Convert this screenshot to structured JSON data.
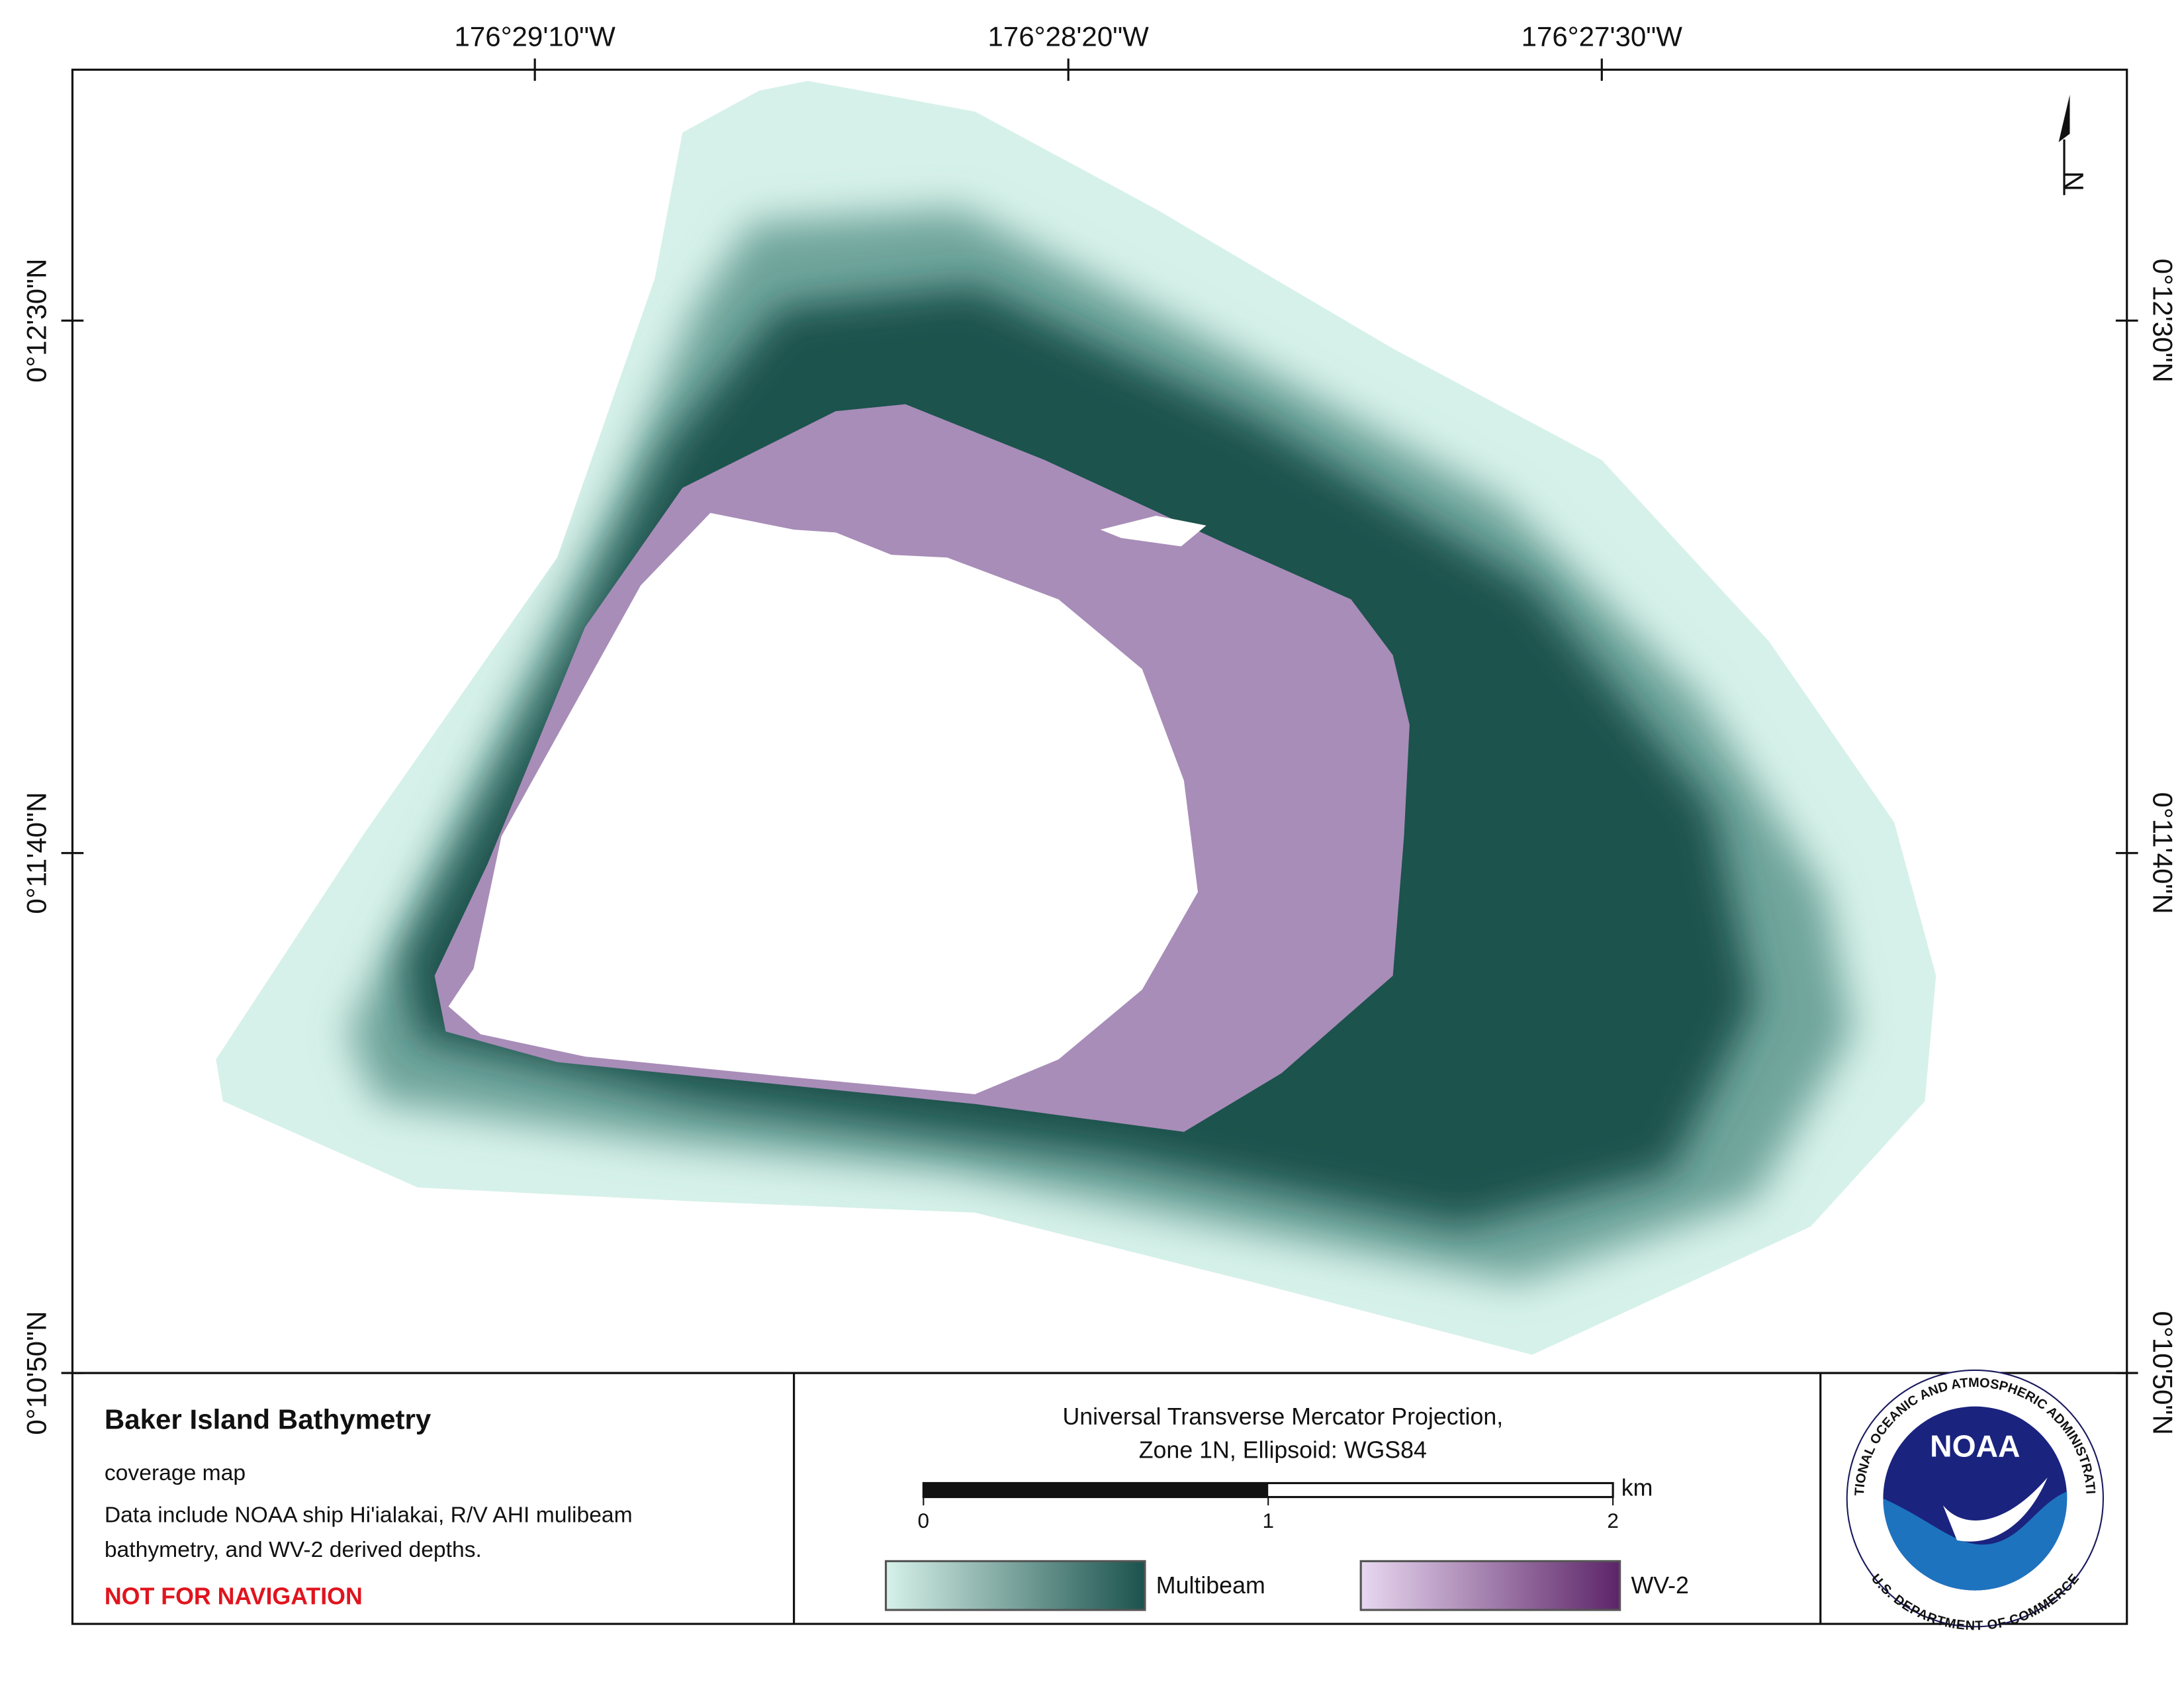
{
  "map": {
    "lon_labels": [
      "176°29'10\"W",
      "176°28'20\"W",
      "176°27'30\"W"
    ],
    "lat_labels": [
      "0°12'30\"N",
      "0°11'40\"N",
      "0°10'50\"N"
    ],
    "north_arrow": "N"
  },
  "info": {
    "title": "Baker Island Bathymetry",
    "subtitle": "coverage map",
    "description": [
      "Data include NOAA ship Hi'ialakai, R/V AHI mulibeam",
      "bathymetry, and WV-2 derived depths."
    ],
    "warning": "NOT FOR NAVIGATION"
  },
  "projection": [
    "Universal Transverse Mercator Projection,",
    "Zone 1N, Ellipsoid: WGS84"
  ],
  "scale_bar": {
    "unit": "km",
    "ticks": [
      0,
      1,
      2
    ]
  },
  "legend": [
    {
      "name": "Multibeam",
      "colors": [
        "#d6f1e9",
        "#1b524d"
      ]
    },
    {
      "name": "WV-2",
      "colors": [
        "#e8d8f0",
        "#5c2468"
      ]
    }
  ],
  "logo": {
    "name": "NOAA",
    "ring_top": "NATIONAL OCEANIC AND ATMOSPHERIC ADMINISTRATION",
    "ring_bottom": "U.S. DEPARTMENT OF COMMERCE"
  }
}
